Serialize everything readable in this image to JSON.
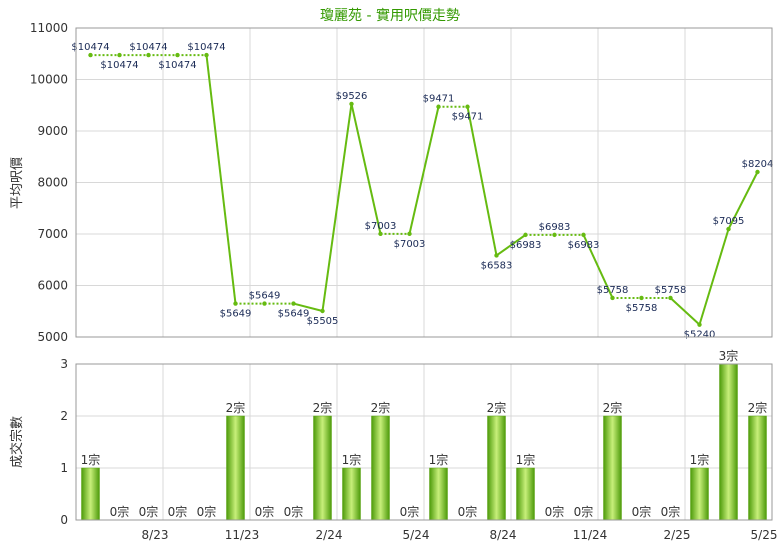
{
  "chart_data": [
    {
      "type": "line",
      "title": "瓊麗苑 - 實用呎價走勢",
      "ylabel": "平均呎價",
      "ylim": [
        5000,
        11000
      ],
      "yticks": [
        "5000",
        "6000",
        "7000",
        "8000",
        "9000",
        "10000",
        "11000"
      ],
      "xticks": [
        "8/23",
        "11/23",
        "2/24",
        "5/24",
        "8/24",
        "11/24",
        "2/25",
        "5/25"
      ],
      "grid": true,
      "color": "#66bb11",
      "series": [
        {
          "values": [
            10474,
            10474,
            10474,
            10474,
            10474,
            5649,
            5649,
            5649,
            5505,
            9526,
            7003,
            7003,
            9471,
            9471,
            6583,
            6983,
            6983,
            6983,
            5758,
            5758,
            5758,
            5240,
            7095,
            8204
          ],
          "labels": [
            "$10474",
            "$10474",
            "$10474",
            "$10474",
            "$10474",
            "$5649",
            "$5649",
            "$5649",
            "$5505",
            "$9526",
            "$7003",
            "$7003",
            "$9471",
            "$9471",
            "$6583",
            "$6983",
            "$6983",
            "$6983",
            "$5758",
            "$5758",
            "$5758",
            "$5240",
            "$7095",
            "$8204"
          ],
          "segments": [
            "dotted",
            "dotted",
            "dotted",
            "dotted",
            "solid",
            "dotted",
            "dotted",
            "solid",
            "solid",
            "solid",
            "dotted",
            "solid",
            "dotted",
            "solid",
            "solid",
            "dotted",
            "dotted",
            "solid",
            "dotted",
            "dotted",
            "solid",
            "solid",
            "solid"
          ]
        }
      ]
    },
    {
      "type": "bar",
      "ylabel": "成交宗數",
      "ylim": [
        0,
        3
      ],
      "yticks": [
        "0",
        "1",
        "2",
        "3"
      ],
      "grid": true,
      "color": "#66bb11",
      "series": [
        {
          "values": [
            1,
            0,
            0,
            0,
            0,
            2,
            0,
            0,
            2,
            1,
            2,
            0,
            1,
            0,
            2,
            1,
            0,
            0,
            2,
            0,
            0,
            1,
            3,
            2
          ],
          "labels": [
            "1宗",
            "0宗",
            "0宗",
            "0宗",
            "0宗",
            "2宗",
            "0宗",
            "0宗",
            "2宗",
            "1宗",
            "2宗",
            "0宗",
            "1宗",
            "0宗",
            "2宗",
            "1宗",
            "0宗",
            "0宗",
            "2宗",
            "0宗",
            "0宗",
            "1宗",
            "3宗",
            "2宗"
          ]
        }
      ]
    }
  ]
}
